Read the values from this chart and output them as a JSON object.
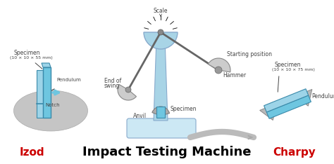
{
  "bg_color": "#ffffff",
  "title_text": "Impact Testing Machine",
  "title_fontsize": 13,
  "title_fontweight": "bold",
  "izod_text": "Izod",
  "izod_color": "#cc0000",
  "charpy_text": "Charpy",
  "charpy_color": "#cc0000",
  "label_color": "#444444",
  "blue_color": "#6ec6e0",
  "blue_dark": "#3a8aaa",
  "blue_mid": "#9dd4e8",
  "gray_light": "#cccccc",
  "gray_mid": "#aaaaaa",
  "machine_blue": "#a8d4e6",
  "machine_blue_light": "#cce8f4"
}
